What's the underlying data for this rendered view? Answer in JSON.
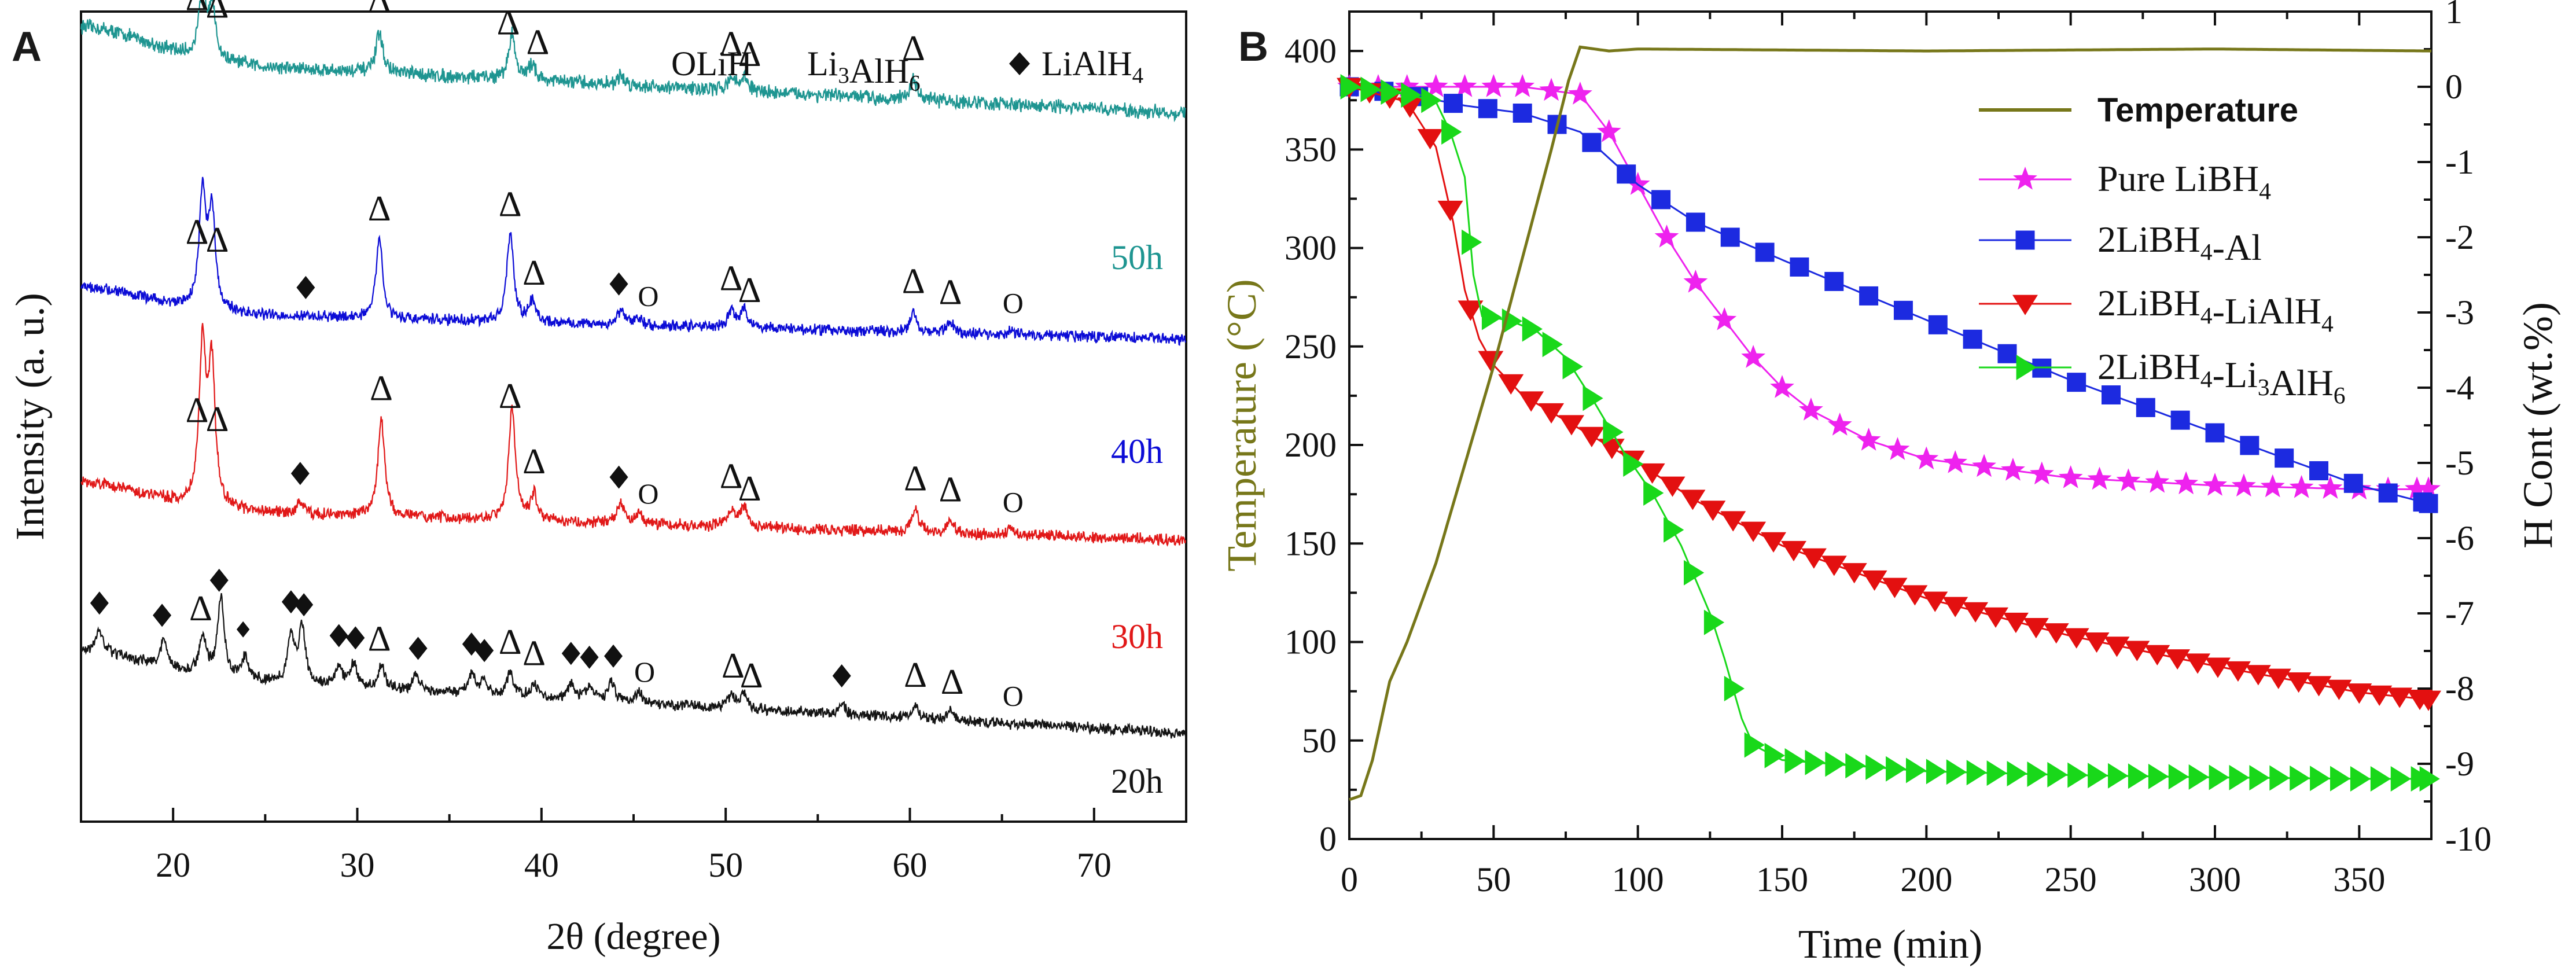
{
  "figure": {
    "panel_a_letter": "A",
    "panel_b_letter": "B"
  },
  "colors": {
    "h50": "#1e9591",
    "h40": "#0c0cd6",
    "h30": "#e11818",
    "h20": "#141414",
    "temperature": "#77771a",
    "pure": "#ee22ee",
    "al": "#1c2ae0",
    "lialh4": "#e31010",
    "li3alh6": "#19d81a"
  },
  "chart_data": [
    {
      "type": "line",
      "title": "",
      "xlabel": "2θ (degree)",
      "ylabel": "Intensity (a. u.)",
      "xlim": [
        15,
        75
      ],
      "xticks": [
        20,
        30,
        40,
        50,
        60,
        70
      ],
      "yticks": [],
      "grid": false,
      "legend": [
        {
          "symbol": "O",
          "label": "LiH"
        },
        {
          "symbol": "Δ",
          "label": "Li3AlH6"
        },
        {
          "symbol": "◆",
          "label": "LiAlH4"
        }
      ],
      "series": [
        {
          "name": "50h",
          "color": "#1e9591",
          "baseline": 1.0,
          "end": 0.38,
          "peaks": [
            [
              21.6,
              0.75
            ],
            [
              22.1,
              0.6
            ],
            [
              31.2,
              0.45
            ],
            [
              38.4,
              0.5
            ],
            [
              39.5,
              0.18
            ],
            [
              44.3,
              0.1
            ],
            [
              50.3,
              0.15
            ],
            [
              51.0,
              0.16
            ],
            [
              60.2,
              0.22
            ]
          ],
          "markers": [
            {
              "x": 21.3,
              "m": "tri"
            },
            {
              "x": 22.4,
              "m": "tri"
            },
            {
              "x": 31.2,
              "m": "tri"
            },
            {
              "x": 38.2,
              "m": "tri"
            },
            {
              "x": 39.8,
              "m": "tri"
            },
            {
              "x": 50.3,
              "m": "tri"
            },
            {
              "x": 51.3,
              "m": "tri"
            },
            {
              "x": 60.2,
              "m": "tri"
            }
          ]
        },
        {
          "name": "40h",
          "color": "#0c0cd6",
          "baseline": 0.6,
          "end": 0.2,
          "peaks": [
            [
              21.6,
              1.65
            ],
            [
              22.1,
              1.4
            ],
            [
              31.2,
              1.15
            ],
            [
              38.3,
              1.25
            ],
            [
              39.5,
              0.3
            ],
            [
              44.3,
              0.2
            ],
            [
              45.2,
              0.12
            ],
            [
              50.3,
              0.25
            ],
            [
              51.0,
              0.28
            ],
            [
              60.2,
              0.3
            ],
            [
              62.2,
              0.15
            ],
            [
              65.5,
              0.06
            ]
          ],
          "markers": [
            {
              "x": 21.3,
              "m": "tri"
            },
            {
              "x": 22.4,
              "m": "tri"
            },
            {
              "x": 27.2,
              "m": "dia"
            },
            {
              "x": 31.2,
              "m": "tri"
            },
            {
              "x": 38.3,
              "m": "tri"
            },
            {
              "x": 39.6,
              "m": "tri"
            },
            {
              "x": 44.2,
              "m": "dia"
            },
            {
              "x": 45.8,
              "m": "circ"
            },
            {
              "x": 50.3,
              "m": "tri"
            },
            {
              "x": 51.3,
              "m": "tri"
            },
            {
              "x": 60.2,
              "m": "tri"
            },
            {
              "x": 62.2,
              "m": "tri"
            },
            {
              "x": 65.6,
              "m": "circ"
            }
          ]
        },
        {
          "name": "30h",
          "color": "#e11818",
          "baseline": 0.7,
          "end": 0.25,
          "peaks": [
            [
              21.6,
              2.2
            ],
            [
              22.1,
              1.9
            ],
            [
              26.9,
              0.15
            ],
            [
              31.3,
              1.35
            ],
            [
              38.4,
              1.55
            ],
            [
              39.6,
              0.35
            ],
            [
              44.3,
              0.28
            ],
            [
              45.3,
              0.15
            ],
            [
              50.3,
              0.25
            ],
            [
              51.0,
              0.3
            ],
            [
              60.3,
              0.32
            ],
            [
              62.2,
              0.18
            ],
            [
              65.5,
              0.08
            ]
          ],
          "markers": [
            {
              "x": 21.3,
              "m": "tri"
            },
            {
              "x": 22.4,
              "m": "tri"
            },
            {
              "x": 26.9,
              "m": "dia"
            },
            {
              "x": 31.3,
              "m": "tri"
            },
            {
              "x": 38.3,
              "m": "tri"
            },
            {
              "x": 39.6,
              "m": "tri"
            },
            {
              "x": 44.2,
              "m": "dia"
            },
            {
              "x": 45.8,
              "m": "circ"
            },
            {
              "x": 50.3,
              "m": "tri"
            },
            {
              "x": 51.3,
              "m": "tri"
            },
            {
              "x": 60.3,
              "m": "tri"
            },
            {
              "x": 62.2,
              "m": "tri"
            },
            {
              "x": 65.6,
              "m": "circ"
            }
          ]
        },
        {
          "name": "20h",
          "color": "#141414",
          "baseline": 1.1,
          "end": 0.2,
          "peaks": [
            [
              16.0,
              0.3
            ],
            [
              19.5,
              0.4
            ],
            [
              21.6,
              0.6
            ],
            [
              22.6,
              1.2
            ],
            [
              23.9,
              0.35
            ],
            [
              26.4,
              0.7
            ],
            [
              27.0,
              0.85
            ],
            [
              29.0,
              0.3
            ],
            [
              29.8,
              0.35
            ],
            [
              31.3,
              0.35
            ],
            [
              33.2,
              0.25
            ],
            [
              36.2,
              0.3
            ],
            [
              36.9,
              0.2
            ],
            [
              38.3,
              0.35
            ],
            [
              39.6,
              0.2
            ],
            [
              41.6,
              0.25
            ],
            [
              42.6,
              0.2
            ],
            [
              43.8,
              0.3
            ],
            [
              45.3,
              0.15
            ],
            [
              50.3,
              0.2
            ],
            [
              51.0,
              0.22
            ],
            [
              56.3,
              0.15
            ],
            [
              60.3,
              0.2
            ],
            [
              62.2,
              0.15
            ]
          ],
          "markers": [
            {
              "x": 16.0,
              "m": "dia"
            },
            {
              "x": 19.4,
              "m": "dia"
            },
            {
              "x": 21.5,
              "m": "tri"
            },
            {
              "x": 22.5,
              "m": "dia"
            },
            {
              "x": 23.8,
              "m": "dia_s"
            },
            {
              "x": 26.4,
              "m": "dia"
            },
            {
              "x": 27.1,
              "m": "dia"
            },
            {
              "x": 29.0,
              "m": "dia"
            },
            {
              "x": 29.9,
              "m": "dia"
            },
            {
              "x": 31.2,
              "m": "tri"
            },
            {
              "x": 33.3,
              "m": "dia"
            },
            {
              "x": 36.2,
              "m": "dia"
            },
            {
              "x": 36.9,
              "m": "dia"
            },
            {
              "x": 38.3,
              "m": "tri"
            },
            {
              "x": 39.6,
              "m": "tri"
            },
            {
              "x": 41.6,
              "m": "dia"
            },
            {
              "x": 42.6,
              "m": "dia"
            },
            {
              "x": 43.9,
              "m": "dia"
            },
            {
              "x": 45.6,
              "m": "circ"
            },
            {
              "x": 50.4,
              "m": "tri"
            },
            {
              "x": 51.4,
              "m": "tri"
            },
            {
              "x": 56.3,
              "m": "dia"
            },
            {
              "x": 60.3,
              "m": "tri"
            },
            {
              "x": 62.3,
              "m": "tri"
            },
            {
              "x": 65.6,
              "m": "circ"
            }
          ]
        }
      ]
    },
    {
      "type": "line",
      "title": "",
      "xlabel": "Time (min)",
      "ylabel_left": "Temperature (°C)",
      "ylabel_right": "H Cont (wt.%)",
      "xlim": [
        0,
        375
      ],
      "ylim_left": [
        0,
        420
      ],
      "ylim_right": [
        -10,
        1
      ],
      "xticks": [
        0,
        50,
        100,
        150,
        200,
        250,
        300,
        350
      ],
      "yticks_left": [
        0,
        50,
        100,
        150,
        200,
        250,
        300,
        350,
        400
      ],
      "yticks_right": [
        1,
        0,
        -1,
        -2,
        -3,
        -4,
        -5,
        -6,
        -7,
        -8,
        -9,
        -10
      ],
      "grid": false,
      "legend_position": "top-right",
      "series": [
        {
          "name": "Temperature",
          "axis": "left",
          "color": "#77771a",
          "marker": "none",
          "x": [
            0,
            4,
            8,
            14,
            20,
            30,
            40,
            50,
            60,
            70,
            76,
            80,
            90,
            100,
            200,
            300,
            375
          ],
          "y": [
            20,
            22,
            40,
            80,
            100,
            140,
            190,
            240,
            295,
            350,
            385,
            402,
            400,
            401,
            400,
            401,
            400
          ]
        },
        {
          "name": "Pure LiBH4",
          "axis": "right",
          "color": "#ee22ee",
          "marker": "star",
          "x": [
            0,
            30,
            60,
            80,
            90,
            100,
            110,
            120,
            130,
            140,
            150,
            160,
            180,
            200,
            250,
            300,
            350,
            375
          ],
          "y": [
            0.0,
            0.0,
            0.0,
            -0.1,
            -0.6,
            -1.3,
            -2.0,
            -2.6,
            -3.1,
            -3.6,
            -4.0,
            -4.3,
            -4.7,
            -4.95,
            -5.2,
            -5.3,
            -5.35,
            -5.35
          ]
        },
        {
          "name": "2LiBH4-Al",
          "axis": "right",
          "color": "#1c2ae0",
          "marker": "square",
          "x": [
            0,
            20,
            40,
            60,
            80,
            100,
            120,
            150,
            200,
            250,
            300,
            350,
            375
          ],
          "y": [
            0.0,
            -0.1,
            -0.25,
            -0.35,
            -0.6,
            -1.3,
            -1.8,
            -2.3,
            -3.1,
            -3.9,
            -4.6,
            -5.3,
            -5.55
          ]
        },
        {
          "name": "2LiBH4-LiAlH4",
          "axis": "right",
          "color": "#e31010",
          "marker": "tri_down",
          "x": [
            0,
            20,
            30,
            36,
            40,
            45,
            50,
            60,
            80,
            100,
            120,
            150,
            200,
            250,
            300,
            350,
            375
          ],
          "y": [
            0.0,
            -0.2,
            -0.8,
            -1.8,
            -2.7,
            -3.35,
            -3.7,
            -4.1,
            -4.55,
            -5.0,
            -5.5,
            -6.1,
            -6.8,
            -7.3,
            -7.7,
            -8.05,
            -8.15
          ]
        },
        {
          "name": "2LiBH4-Li3AlH6",
          "axis": "right",
          "color": "#19d81a",
          "marker": "tri_right",
          "x": [
            0,
            20,
            30,
            35,
            40,
            43,
            46,
            55,
            65,
            75,
            85,
            95,
            105,
            115,
            125,
            130,
            136,
            140,
            150,
            200,
            250,
            300,
            350,
            375
          ],
          "y": [
            0.0,
            -0.1,
            -0.2,
            -0.6,
            -1.2,
            -2.5,
            -3.05,
            -3.1,
            -3.25,
            -3.6,
            -4.2,
            -4.85,
            -5.4,
            -6.1,
            -7.0,
            -7.6,
            -8.4,
            -8.75,
            -8.95,
            -9.1,
            -9.15,
            -9.18,
            -9.2,
            -9.2
          ]
        }
      ]
    }
  ]
}
